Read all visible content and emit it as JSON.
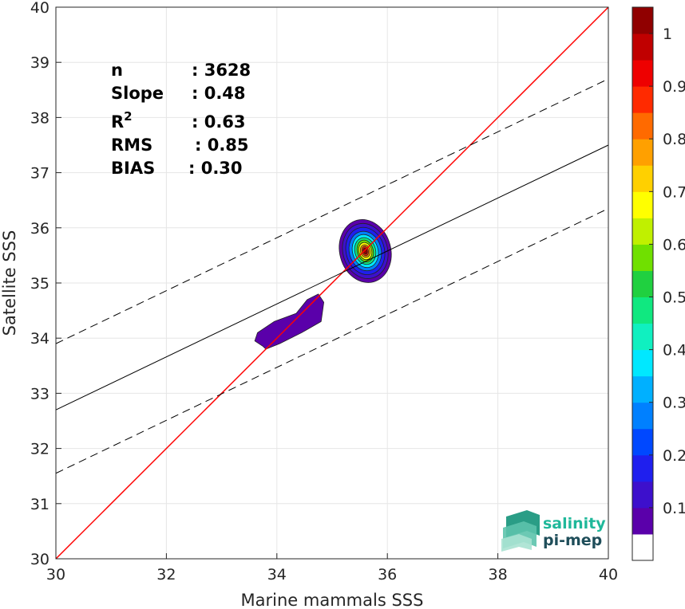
{
  "chart_data": {
    "type": "scatter",
    "style": "filled-contour density",
    "xlabel": "Marine mammals SSS",
    "ylabel": "Satellite SSS",
    "xlim": [
      30,
      40
    ],
    "ylim": [
      30,
      40
    ],
    "xticks": [
      "30",
      "32",
      "34",
      "36",
      "38",
      "40"
    ],
    "yticks": [
      "30",
      "31",
      "32",
      "33",
      "34",
      "35",
      "36",
      "37",
      "38",
      "39",
      "40"
    ],
    "grid": true,
    "stats": [
      {
        "label": "n",
        "value": ": 3628"
      },
      {
        "label": "Slope",
        "value": ": 0.48"
      },
      {
        "label": "R",
        "sup": "2",
        "value": ": 0.63"
      },
      {
        "label": "RMS",
        "value": ": 0.85"
      },
      {
        "label": "BIAS",
        "value": ": 0.30"
      }
    ],
    "lines": [
      {
        "name": "identity",
        "color": "#ff0000",
        "dash": false,
        "x": [
          30,
          40
        ],
        "y": [
          30,
          40
        ]
      },
      {
        "name": "regression",
        "color": "#000000",
        "dash": false,
        "x": [
          30,
          40
        ],
        "y": [
          32.7,
          37.5
        ]
      },
      {
        "name": "upper",
        "color": "#000000",
        "dash": true,
        "x": [
          30,
          40
        ],
        "y": [
          33.9,
          38.7
        ]
      },
      {
        "name": "lower",
        "color": "#000000",
        "dash": true,
        "x": [
          30,
          40
        ],
        "y": [
          31.55,
          36.35
        ]
      }
    ],
    "density_peak": {
      "x": 35.6,
      "y": 35.55
    },
    "colorbar": {
      "ticks": [
        "0.1",
        "0.2",
        "0.3",
        "0.4",
        "0.5",
        "0.6",
        "0.7",
        "0.8",
        "0.9",
        "1"
      ],
      "levels": [
        0.05,
        0.1,
        0.15,
        0.2,
        0.25,
        0.3,
        0.35,
        0.4,
        0.45,
        0.5,
        0.55,
        0.6,
        0.65,
        0.7,
        0.75,
        0.8,
        0.85,
        0.9,
        0.95,
        1.0
      ],
      "colors": [
        "#ffffff",
        "#5a00aa",
        "#3d10cc",
        "#1f1fee",
        "#0048ff",
        "#0080ff",
        "#00b0ff",
        "#00e8ff",
        "#10f0c0",
        "#10e880",
        "#20d040",
        "#70e000",
        "#c0f000",
        "#ffff00",
        "#ffd000",
        "#ffa000",
        "#ff6a00",
        "#ff2a00",
        "#ee0000",
        "#c00000",
        "#900000"
      ]
    }
  },
  "logo": {
    "line1": "salinity",
    "line2": "pi-mep"
  }
}
